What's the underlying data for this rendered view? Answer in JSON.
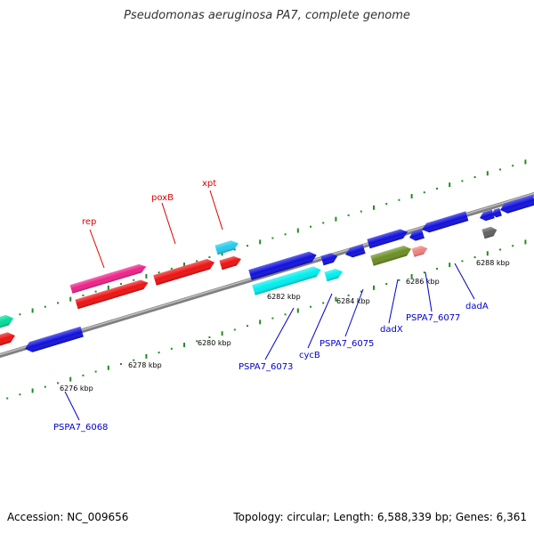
{
  "title": "Pseudomonas aeruginosa PA7, complete genome",
  "footer": {
    "accession": "Accession: NC_009656",
    "topology": "Topology: circular",
    "length": "Length: 6,588,339 bp",
    "genes": "Genes: 6,361"
  },
  "colors": {
    "backbone": "#808080",
    "ticks": "#228b22",
    "red_label": "#dd0000",
    "blue_label": "#0000cc",
    "tick_label": "#000000"
  },
  "tick_labels": [
    "6276 kbp",
    "6278 kbp",
    "6280 kbp",
    "6282 kbp",
    "6284 kbp",
    "6286 kbp",
    "6288 kbp"
  ],
  "gene_labels": {
    "top": [
      "rep",
      "poxB",
      "xpt"
    ],
    "bottom": [
      "PSPA7_6068",
      "PSPA7_6073",
      "cycB",
      "PSPA7_6075",
      "dadX",
      "PSPA7_6077",
      "dadA"
    ]
  },
  "feature_colors": {
    "blue": "#1010dd",
    "red": "#ee1111",
    "magenta": "#ee2288",
    "cyan": "#22ccee",
    "aqua": "#00eeee",
    "olive": "#6b8e23",
    "salmon": "#f08080",
    "gray": "#606060",
    "teal": "#00dd99"
  }
}
